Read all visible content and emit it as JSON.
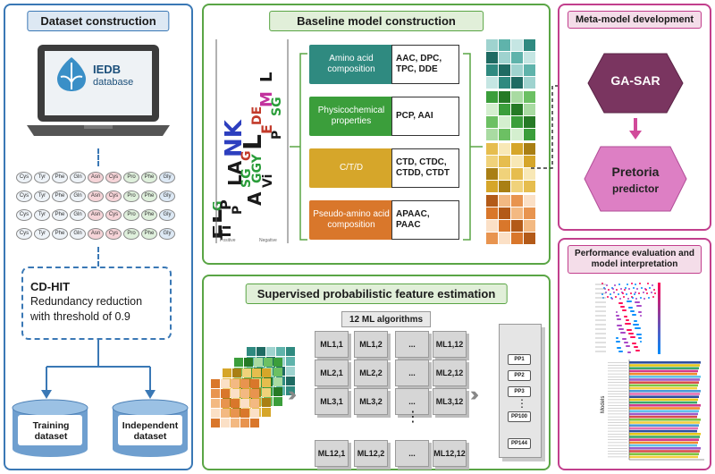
{
  "colors": {
    "blue": "#3a78b5",
    "green": "#5aa545",
    "magenta": "#c23f8d",
    "aac": "#2f8a80",
    "pcp": "#3b9e3b",
    "ctd": "#d6a62a",
    "pse": "#d9772b"
  },
  "dataset": {
    "title": "Dataset construction",
    "db_name": "IEDB",
    "db_label": "database",
    "grid_rows": [
      [
        "Cys",
        "Tyr",
        "Phe",
        "Gln",
        "Asn",
        "Cys",
        "Pro",
        "Phe",
        "Gly"
      ],
      [
        "Cys",
        "Tyr",
        "Phe",
        "Gln",
        "Asn",
        "Cys",
        "Pro",
        "Phe",
        "Gly"
      ],
      [
        "Cys",
        "Tyr",
        "Phe",
        "Gln",
        "Asn",
        "Cys",
        "Pro",
        "Phe",
        "Gly"
      ],
      [
        "Cys",
        "Tyr",
        "Phe",
        "Gln",
        "Asn",
        "Cys",
        "Pro",
        "Phe",
        "Gly"
      ]
    ],
    "cdhit_title": "CD-HIT",
    "cdhit_desc1": "Redundancy reduction",
    "cdhit_desc2": "with threshold of 0.9",
    "training_label1": "Training",
    "training_label2": "dataset",
    "independent_label1": "Independent",
    "independent_label2": "dataset"
  },
  "baseline": {
    "title": "Baseline model construction",
    "features": [
      {
        "name": "Amino acid composition",
        "items": "AAC, DPC, TPC, DDE"
      },
      {
        "name": "Physicochemical properties",
        "items": "PCP, AAI"
      },
      {
        "name": "C/T/D",
        "items": "CTD, CTDC, CTDD, CTDT"
      },
      {
        "name": "Pseudo-amino acid composition",
        "items": "APAAC, PAAC"
      }
    ],
    "logo_left_label": "Positive",
    "logo_right_label": "Negative"
  },
  "supervised": {
    "title": "Supervised probabilistic feature estimation",
    "ml_header": "12 ML algorithms",
    "ml_rows": [
      [
        "ML1,1",
        "ML1,2",
        "...",
        "ML1,12"
      ],
      [
        "ML2,1",
        "ML2,2",
        "...",
        "ML2,12"
      ],
      [
        "ML3,1",
        "ML3,2",
        "...",
        "ML3,12"
      ],
      [
        "ML12,1",
        "ML12,2",
        "...",
        "ML12,12"
      ]
    ],
    "pp": [
      "PP1",
      "PP2",
      "PP3",
      "PP100",
      "PP144"
    ],
    "vdots": "⋮"
  },
  "meta": {
    "title": "Meta-model development",
    "gasar": "GA-SAR",
    "pretoria1": "Pretoria",
    "pretoria2": "predictor"
  },
  "perf": {
    "title": "Performance evaluation and model interpretation",
    "models_axis": "Models"
  }
}
